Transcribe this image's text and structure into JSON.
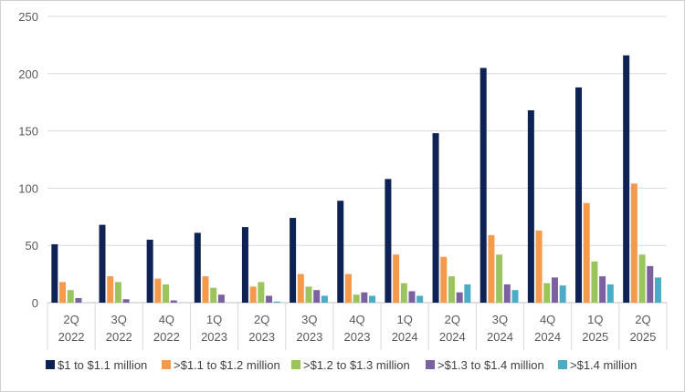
{
  "chart_data": {
    "type": "bar",
    "title": "",
    "xlabel": "",
    "ylabel": "",
    "ylim": [
      0,
      250
    ],
    "yticks": [
      "0",
      "50",
      "100",
      "150",
      "200",
      "250"
    ],
    "grid": true,
    "legend_position": "bottom",
    "categories": [
      [
        "2Q",
        "2022"
      ],
      [
        "3Q",
        "2022"
      ],
      [
        "4Q",
        "2022"
      ],
      [
        "1Q",
        "2023"
      ],
      [
        "2Q",
        "2023"
      ],
      [
        "3Q",
        "2023"
      ],
      [
        "4Q",
        "2023"
      ],
      [
        "1Q",
        "2024"
      ],
      [
        "2Q",
        "2024"
      ],
      [
        "3Q",
        "2024"
      ],
      [
        "4Q",
        "2024"
      ],
      [
        "1Q",
        "2025"
      ],
      [
        "2Q",
        "2025"
      ]
    ],
    "series": [
      {
        "name": "$1 to $1.1 million",
        "color": "#0e2254",
        "values": [
          51,
          68,
          55,
          61,
          66,
          74,
          89,
          108,
          148,
          205,
          168,
          188,
          216
        ]
      },
      {
        "name": ">$1.1 to $1.2 million",
        "color": "#f49a4c",
        "values": [
          18,
          23,
          21,
          23,
          14,
          25,
          25,
          42,
          40,
          59,
          63,
          87,
          104
        ]
      },
      {
        "name": ">$1.2 to $1.3 million",
        "color": "#9bc55c",
        "values": [
          11,
          18,
          16,
          13,
          18,
          14,
          7,
          17,
          23,
          42,
          17,
          36,
          42
        ]
      },
      {
        "name": ">$1.3 to $1.4 million",
        "color": "#7b61a0",
        "values": [
          4,
          3,
          2,
          7,
          6,
          11,
          9,
          10,
          9,
          16,
          22,
          23,
          32
        ]
      },
      {
        "name": ">$1.4 million",
        "color": "#4bacc6",
        "values": [
          0,
          0,
          0,
          0,
          1,
          6,
          6,
          6,
          16,
          11,
          15,
          16,
          22
        ]
      }
    ]
  }
}
